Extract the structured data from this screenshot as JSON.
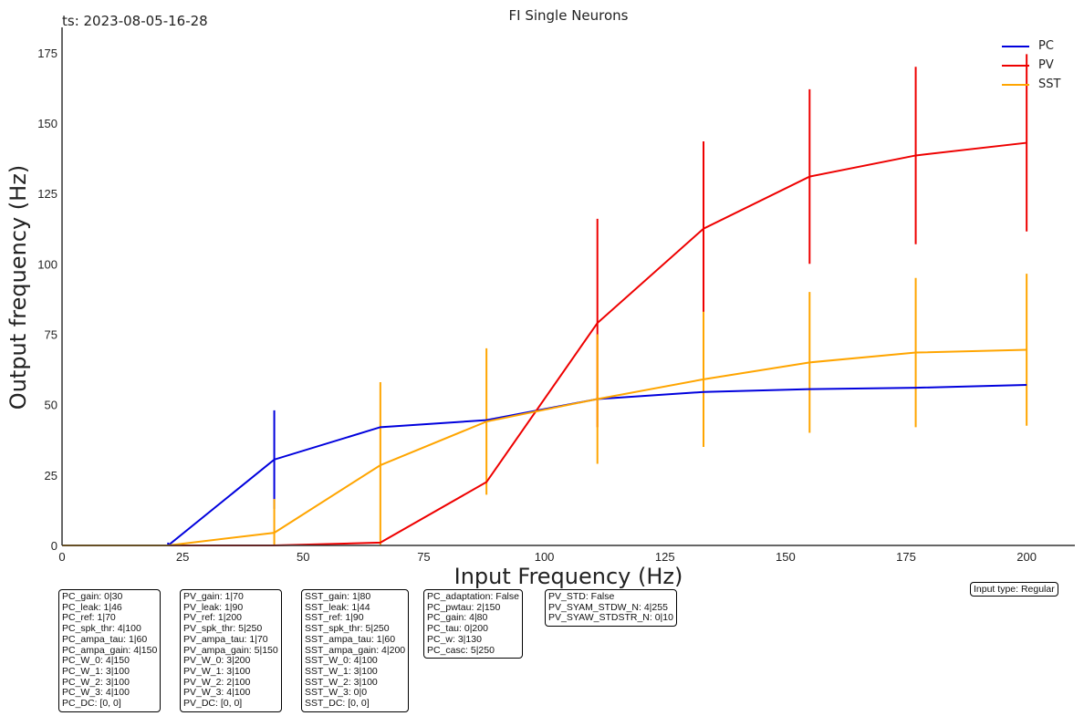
{
  "timestamp": "ts: 2023-08-05-16-28",
  "chart_data": {
    "type": "line",
    "title": "FI Single Neurons",
    "xlabel": "Input Frequency (Hz)",
    "ylabel": "Output frequency (Hz)",
    "xlim": [
      0,
      210
    ],
    "ylim": [
      0,
      184
    ],
    "xticks": [
      0,
      25,
      50,
      75,
      100,
      125,
      150,
      175,
      200
    ],
    "yticks": [
      0,
      25,
      50,
      75,
      100,
      125,
      150,
      175
    ],
    "grid": false,
    "legend_position": "top-right",
    "x": [
      0,
      22,
      44,
      66,
      88,
      111,
      133,
      155,
      177,
      200
    ],
    "series": [
      {
        "name": "PC",
        "color": "#0000dd",
        "values": [
          0,
          0,
          30.5,
          42,
          44.5,
          52,
          54.5,
          55.5,
          56,
          57
        ],
        "errors": [
          0,
          1,
          17.5,
          0,
          0,
          0,
          0,
          0,
          0,
          0
        ]
      },
      {
        "name": "PV",
        "color": "#ee0000",
        "values": [
          0,
          0,
          0,
          1,
          22.5,
          79,
          112.5,
          131,
          138.5,
          143
        ],
        "errors": [
          0,
          0,
          0,
          0,
          0,
          37,
          31,
          31,
          31.5,
          31.5
        ]
      },
      {
        "name": "SST",
        "color": "#ffa500",
        "values": [
          0,
          0,
          4.5,
          28.5,
          44,
          52,
          59,
          65,
          68.5,
          69.5
        ],
        "errors": [
          0,
          0,
          12,
          29.5,
          26,
          23,
          24,
          25,
          26.5,
          27
        ]
      }
    ]
  },
  "input_type": "Input type: Regular",
  "param_boxes": [
    [
      "PC_gain: 0|30",
      "PC_leak: 1|46",
      "PC_ref: 1|70",
      "PC_spk_thr: 4|100",
      "PC_ampa_tau: 1|60",
      "PC_ampa_gain: 4|150",
      "PC_W_0: 4|150",
      "PC_W_1: 3|100",
      "PC_W_2: 3|100",
      "PC_W_3: 4|100",
      "PC_DC: [0, 0]"
    ],
    [
      "PV_gain: 1|70",
      "PV_leak: 1|90",
      "PV_ref: 1|200",
      "PV_spk_thr: 5|250",
      "PV_ampa_tau: 1|70",
      "PV_ampa_gain: 5|150",
      "PV_W_0: 3|200",
      "PV_W_1: 3|100",
      "PV_W_2: 2|100",
      "PV_W_3: 4|100",
      "PV_DC: [0, 0]"
    ],
    [
      "SST_gain: 1|80",
      "SST_leak: 1|44",
      "SST_ref: 1|90",
      "SST_spk_thr: 5|250",
      "SST_ampa_tau: 1|60",
      "SST_ampa_gain: 4|200",
      "SST_W_0: 4|100",
      "SST_W_1: 3|100",
      "SST_W_2: 3|100",
      "SST_W_3: 0|0",
      "SST_DC: [0, 0]"
    ],
    [
      "PC_adaptation: False",
      "PC_pwtau: 2|150",
      "PC_gain: 4|80",
      "PC_tau: 0|200",
      "PC_w: 3|130",
      "PC_casc: 5|250"
    ],
    [
      "PV_STD: False",
      "PV_SYAM_STDW_N: 4|255",
      "PV_SYAW_STDSTR_N: 0|10"
    ]
  ]
}
